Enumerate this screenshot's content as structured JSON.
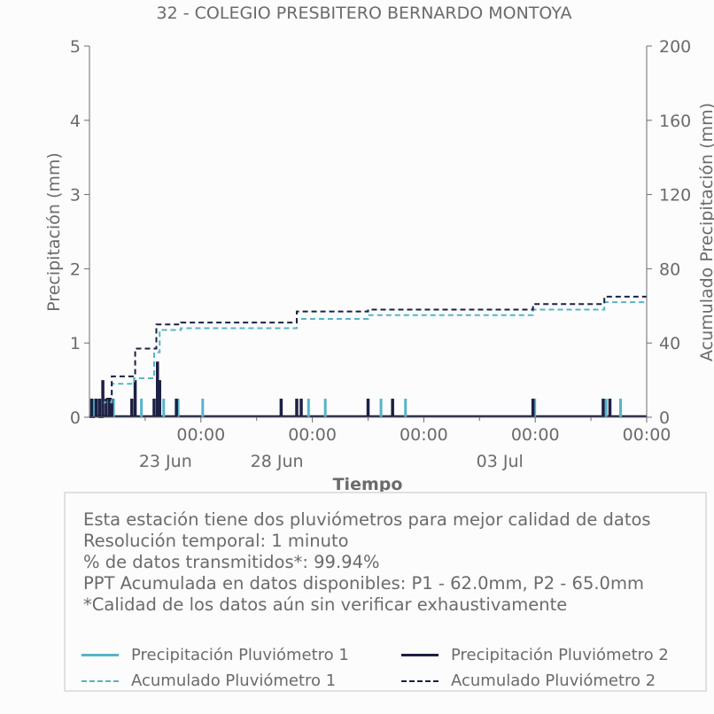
{
  "chart_data": {
    "type": "bar+line",
    "title": "32 - COLEGIO PRESBITERO BERNARDO MONTOYA",
    "xlabel": "Tiempo",
    "ylabel_left": "Precipitación (mm)",
    "ylabel_right": "Acumulado Precipitación (mm)",
    "ylim_left": [
      0,
      5
    ],
    "ylim_right": [
      0,
      200
    ],
    "yticks_left": [
      "0",
      "1",
      "2",
      "3",
      "4",
      "5"
    ],
    "yticks_right": [
      "0",
      "40",
      "80",
      "120",
      "160",
      "200"
    ],
    "xlim_days": [
      23.0,
      28.0
    ],
    "xticks_major": [
      {
        "label": "00:00",
        "sub": "23 Jun",
        "day": 24.0
      },
      {
        "label": "00:00",
        "sub": "28 Jun",
        "day": 25.0
      },
      {
        "label": "00:00",
        "sub": "",
        "day": 26.0
      },
      {
        "label": "00:00",
        "sub": "03 Jul",
        "day": 27.0
      },
      {
        "label": "00:00",
        "sub": "",
        "day": 28.0
      }
    ],
    "colors": {
      "p1": "#56b4c8",
      "p2": "#1c2044"
    },
    "series": [
      {
        "name": "Precipitación Pluviómetro 1",
        "kind": "bar",
        "points": [
          [
            23.03,
            0.25
          ],
          [
            23.1,
            0.25
          ],
          [
            23.2,
            0.25
          ],
          [
            23.45,
            0.25
          ],
          [
            23.65,
            0.25
          ],
          [
            23.78,
            0.25
          ],
          [
            24.0,
            0.25
          ],
          [
            24.95,
            0.25
          ],
          [
            25.1,
            0.25
          ],
          [
            25.6,
            0.25
          ],
          [
            25.82,
            0.25
          ],
          [
            26.98,
            0.25
          ],
          [
            27.62,
            0.25
          ],
          [
            27.75,
            0.25
          ]
        ]
      },
      {
        "name": "Precipitación Pluviómetro 2",
        "kind": "bar",
        "points": [
          [
            23.02,
            0.25
          ],
          [
            23.06,
            0.25
          ],
          [
            23.09,
            0.25
          ],
          [
            23.12,
            0.5
          ],
          [
            23.15,
            0.25
          ],
          [
            23.18,
            0.25
          ],
          [
            23.2,
            0.25
          ],
          [
            23.38,
            0.25
          ],
          [
            23.41,
            0.5
          ],
          [
            23.58,
            0.25
          ],
          [
            23.61,
            0.75
          ],
          [
            23.63,
            0.5
          ],
          [
            23.78,
            0.25
          ],
          [
            24.72,
            0.25
          ],
          [
            24.86,
            0.25
          ],
          [
            24.9,
            0.25
          ],
          [
            25.5,
            0.25
          ],
          [
            25.72,
            0.25
          ],
          [
            26.98,
            0.25
          ],
          [
            27.61,
            0.25
          ],
          [
            27.67,
            0.25
          ]
        ]
      },
      {
        "name": "Acumulado Pluviómetro 1",
        "kind": "step",
        "points": [
          [
            23.0,
            0
          ],
          [
            23.12,
            8
          ],
          [
            23.2,
            18
          ],
          [
            23.4,
            21
          ],
          [
            23.58,
            35
          ],
          [
            23.63,
            47
          ],
          [
            23.82,
            48
          ],
          [
            24.86,
            53
          ],
          [
            25.5,
            55
          ],
          [
            26.98,
            58
          ],
          [
            27.62,
            62
          ],
          [
            28.0,
            62
          ]
        ]
      },
      {
        "name": "Acumulado Pluviómetro 2",
        "kind": "step",
        "points": [
          [
            23.0,
            0
          ],
          [
            23.12,
            10
          ],
          [
            23.2,
            22
          ],
          [
            23.4,
            23
          ],
          [
            23.41,
            37
          ],
          [
            23.6,
            50
          ],
          [
            23.82,
            51
          ],
          [
            24.86,
            57
          ],
          [
            25.5,
            58
          ],
          [
            26.98,
            61
          ],
          [
            27.62,
            65
          ],
          [
            28.0,
            65
          ]
        ]
      }
    ]
  },
  "info": {
    "line1": "Esta estación tiene dos pluviómetros para mejor calidad de datos",
    "line2": "Resolución temporal: 1 minuto",
    "line3": "% de datos transmitidos*: 99.94%",
    "line4": "PPT Acumulada en datos disponibles: P1 - 62.0mm, P2 - 65.0mm",
    "line5": "*Calidad de los datos aún sin verificar exhaustivamente"
  },
  "legend": {
    "p1_bar": "Precipitación Pluviómetro 1",
    "p2_bar": "Precipitación Pluviómetro 2",
    "p1_cum": "Acumulado Pluviómetro 1",
    "p2_cum": "Acumulado Pluviómetro 2"
  }
}
